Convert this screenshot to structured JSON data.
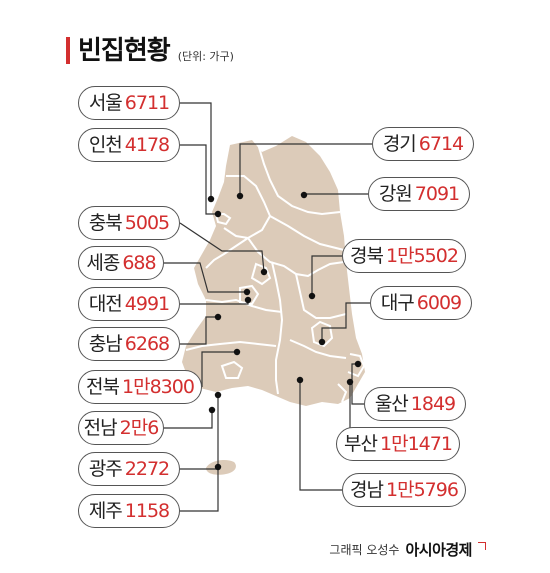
{
  "title": "빈집현황",
  "unit": "(단위: 가구)",
  "credit": {
    "author": "그래픽 오성수",
    "brand": "아시아경제"
  },
  "colors": {
    "land": "#dccbb9",
    "border": "#ffffff",
    "value": "#d32f2f",
    "accent": "#d32f2f",
    "leader": "#333333"
  },
  "regions": [
    {
      "name": "서울",
      "value": "6711"
    },
    {
      "name": "인천",
      "value": "4178"
    },
    {
      "name": "충북",
      "value": "5005"
    },
    {
      "name": "세종",
      "value": "688"
    },
    {
      "name": "대전",
      "value": "4991"
    },
    {
      "name": "충남",
      "value": "6268"
    },
    {
      "name": "전북",
      "value": "1만8300"
    },
    {
      "name": "전남",
      "value": "2만6"
    },
    {
      "name": "광주",
      "value": "2272"
    },
    {
      "name": "제주",
      "value": "1158"
    },
    {
      "name": "경기",
      "value": "6714"
    },
    {
      "name": "강원",
      "value": "7091"
    },
    {
      "name": "경북",
      "value": "1만5502"
    },
    {
      "name": "대구",
      "value": "6009"
    },
    {
      "name": "울산",
      "value": "1849"
    },
    {
      "name": "부산",
      "value": "1만1471"
    },
    {
      "name": "경남",
      "value": "1만5796"
    }
  ]
}
